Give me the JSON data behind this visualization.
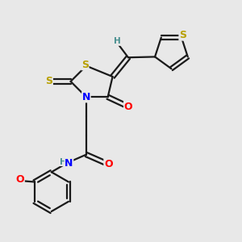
{
  "bg_color": "#e8e8e8",
  "bond_color": "#1a1a1a",
  "bond_width": 1.6,
  "atom_colors": {
    "S": "#b8a000",
    "N": "#0000ff",
    "O": "#ff0000",
    "H": "#4a9090",
    "C": "#1a1a1a"
  },
  "font_size_atom": 9,
  "font_size_small": 7.5
}
